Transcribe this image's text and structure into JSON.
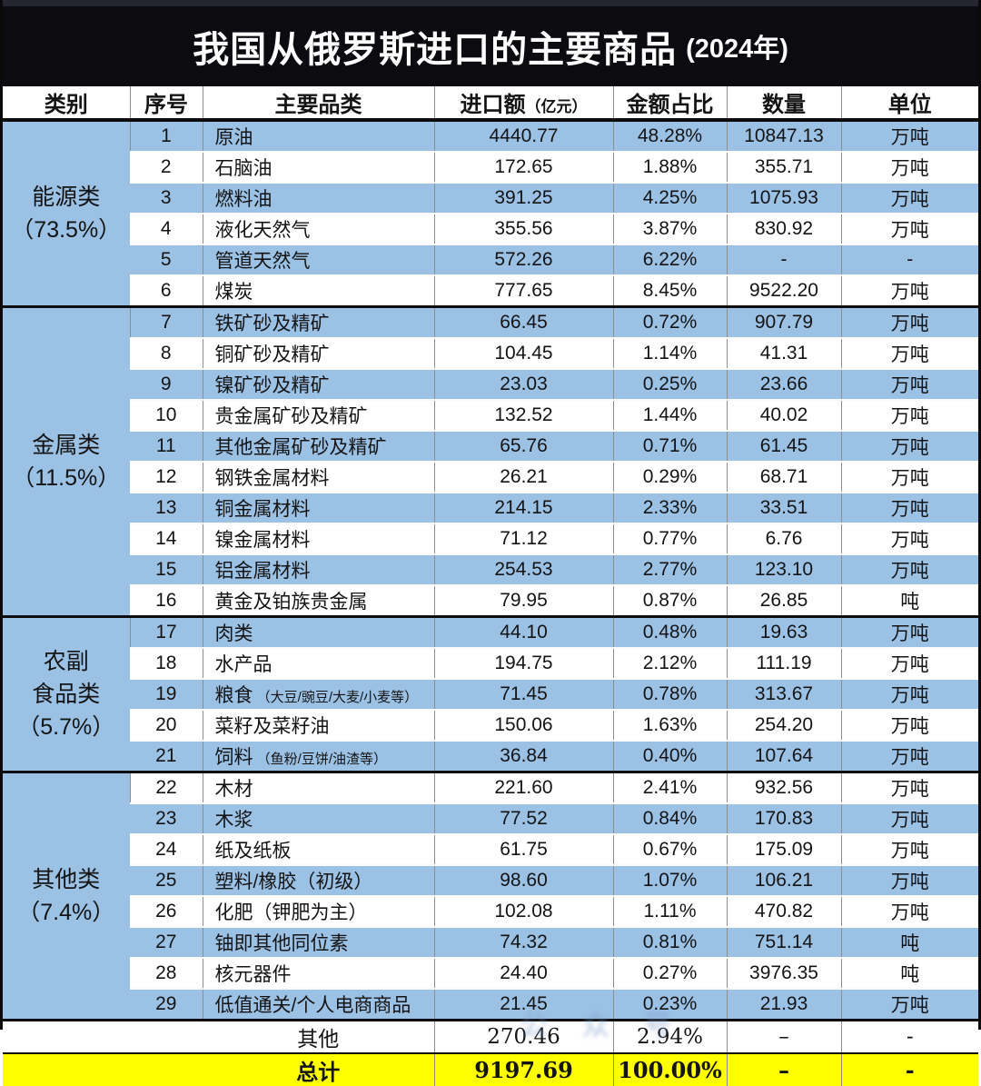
{
  "title": {
    "main": "我国从俄罗斯进口的主要商品",
    "year": "(2024年)"
  },
  "header": {
    "category": "类别",
    "no": "序号",
    "name": "主要品类",
    "value": "进口额",
    "value_sub": "（亿元）",
    "share": "金额占比",
    "qty": "数量",
    "unit": "单位"
  },
  "categories": [
    {
      "label_lines": [
        "能源类",
        "（73.5%）"
      ],
      "bg": "white",
      "rows": [
        {
          "no": "1",
          "name": "原油",
          "note": "",
          "value": "4440.77",
          "share": "48.28%",
          "qty": "10847.13",
          "unit": "万吨"
        },
        {
          "no": "2",
          "name": "石脑油",
          "note": "",
          "value": "172.65",
          "share": "1.88%",
          "qty": "355.71",
          "unit": "万吨"
        },
        {
          "no": "3",
          "name": "燃料油",
          "note": "",
          "value": "391.25",
          "share": "4.25%",
          "qty": "1075.93",
          "unit": "万吨"
        },
        {
          "no": "4",
          "name": "液化天然气",
          "note": "",
          "value": "355.56",
          "share": "3.87%",
          "qty": "830.92",
          "unit": "万吨"
        },
        {
          "no": "5",
          "name": "管道天然气",
          "note": "",
          "value": "572.26",
          "share": "6.22%",
          "qty": "-",
          "unit": "-"
        },
        {
          "no": "6",
          "name": "煤炭",
          "note": "",
          "value": "777.65",
          "share": "8.45%",
          "qty": "9522.20",
          "unit": "万吨"
        }
      ]
    },
    {
      "label_lines": [
        "金属类",
        "（11.5%）"
      ],
      "bg": "blue",
      "rows": [
        {
          "no": "7",
          "name": "铁矿砂及精矿",
          "note": "",
          "value": "66.45",
          "share": "0.72%",
          "qty": "907.79",
          "unit": "万吨"
        },
        {
          "no": "8",
          "name": "铜矿砂及精矿",
          "note": "",
          "value": "104.45",
          "share": "1.14%",
          "qty": "41.31",
          "unit": "万吨"
        },
        {
          "no": "9",
          "name": "镍矿砂及精矿",
          "note": "",
          "value": "23.03",
          "share": "0.25%",
          "qty": "23.66",
          "unit": "万吨"
        },
        {
          "no": "10",
          "name": "贵金属矿砂及精矿",
          "note": "",
          "value": "132.52",
          "share": "1.44%",
          "qty": "40.02",
          "unit": "万吨"
        },
        {
          "no": "11",
          "name": "其他金属矿砂及精矿",
          "note": "",
          "value": "65.76",
          "share": "0.71%",
          "qty": "61.45",
          "unit": "万吨"
        },
        {
          "no": "12",
          "name": "钢铁金属材料",
          "note": "",
          "value": "26.21",
          "share": "0.29%",
          "qty": "68.71",
          "unit": "万吨"
        },
        {
          "no": "13",
          "name": "铜金属材料",
          "note": "",
          "value": "214.15",
          "share": "2.33%",
          "qty": "33.51",
          "unit": "万吨"
        },
        {
          "no": "14",
          "name": "镍金属材料",
          "note": "",
          "value": "71.12",
          "share": "0.77%",
          "qty": "6.76",
          "unit": "万吨"
        },
        {
          "no": "15",
          "name": "铝金属材料",
          "note": "",
          "value": "254.53",
          "share": "2.77%",
          "qty": "123.10",
          "unit": "万吨"
        },
        {
          "no": "16",
          "name": "黄金及铂族贵金属",
          "note": "",
          "value": "79.95",
          "share": "0.87%",
          "qty": "26.85",
          "unit": "吨"
        }
      ]
    },
    {
      "label_lines": [
        "农副",
        "食品类",
        "（5.7%）"
      ],
      "bg": "white",
      "rows": [
        {
          "no": "17",
          "name": "肉类",
          "note": "",
          "value": "44.10",
          "share": "0.48%",
          "qty": "19.63",
          "unit": "万吨"
        },
        {
          "no": "18",
          "name": "水产品",
          "note": "",
          "value": "194.75",
          "share": "2.12%",
          "qty": "111.19",
          "unit": "万吨"
        },
        {
          "no": "19",
          "name": "粮食",
          "note": "（大豆/豌豆/大麦/小麦等）",
          "value": "71.45",
          "share": "0.78%",
          "qty": "313.67",
          "unit": "万吨"
        },
        {
          "no": "20",
          "name": "菜籽及菜籽油",
          "note": "",
          "value": "150.06",
          "share": "1.63%",
          "qty": "254.20",
          "unit": "万吨"
        },
        {
          "no": "21",
          "name": "饲料",
          "note": "（鱼粉/豆饼/油渣等）",
          "value": "36.84",
          "share": "0.40%",
          "qty": "107.64",
          "unit": "万吨"
        }
      ]
    },
    {
      "label_lines": [
        "其他类",
        "（7.4%）"
      ],
      "bg": "blue",
      "rows": [
        {
          "no": "22",
          "name": "木材",
          "note": "",
          "value": "221.60",
          "share": "2.41%",
          "qty": "932.56",
          "unit": "万吨"
        },
        {
          "no": "23",
          "name": "木浆",
          "note": "",
          "value": "77.52",
          "share": "0.84%",
          "qty": "170.83",
          "unit": "万吨"
        },
        {
          "no": "24",
          "name": "纸及纸板",
          "note": "",
          "value": "61.75",
          "share": "0.67%",
          "qty": "175.09",
          "unit": "万吨"
        },
        {
          "no": "25",
          "name": "塑料/橡胶（初级）",
          "note": "",
          "value": "98.60",
          "share": "1.07%",
          "qty": "106.21",
          "unit": "万吨"
        },
        {
          "no": "26",
          "name": "化肥（钾肥为主）",
          "note": "",
          "value": "102.08",
          "share": "1.11%",
          "qty": "470.82",
          "unit": "万吨"
        },
        {
          "no": "27",
          "name": "铀即其他同位素",
          "note": "",
          "value": "74.32",
          "share": "0.81%",
          "qty": "751.14",
          "unit": "吨"
        },
        {
          "no": "28",
          "name": "核元器件",
          "note": "",
          "value": "24.40",
          "share": "0.27%",
          "qty": "3976.35",
          "unit": "吨"
        },
        {
          "no": "29",
          "name": "低值通关/个人电商商品",
          "note": "",
          "value": "21.45",
          "share": "0.23%",
          "qty": "21.93",
          "unit": "万吨"
        }
      ]
    }
  ],
  "footer": {
    "other": {
      "name": "其他",
      "value": "270.46",
      "share": "2.94%",
      "qty": "–",
      "unit": "-"
    },
    "total": {
      "name": "总计",
      "value": "9197.69",
      "share": "100.00%",
      "qty": "–",
      "unit": "-"
    }
  },
  "watermark": "公众号",
  "colors": {
    "row_blue": "#9BC1E5",
    "total_yellow": "#FFFF00",
    "title_bg": "#0B0B10",
    "grid_line": "#8d8d8d"
  },
  "chart_data": {
    "type": "table",
    "title": "我国从俄罗斯进口的主要商品 (2024年)",
    "columns": [
      "类别",
      "序号",
      "主要品类",
      "进口额（亿元）",
      "金额占比",
      "数量",
      "单位"
    ],
    "category_shares": {
      "能源类": "73.5%",
      "金属类": "11.5%",
      "农副食品类": "5.7%",
      "其他类": "7.4%"
    },
    "rows": [
      [
        "能源类（73.5%）",
        1,
        "原油",
        4440.77,
        "48.28%",
        10847.13,
        "万吨"
      ],
      [
        "能源类（73.5%）",
        2,
        "石脑油",
        172.65,
        "1.88%",
        355.71,
        "万吨"
      ],
      [
        "能源类（73.5%）",
        3,
        "燃料油",
        391.25,
        "4.25%",
        1075.93,
        "万吨"
      ],
      [
        "能源类（73.5%）",
        4,
        "液化天然气",
        355.56,
        "3.87%",
        830.92,
        "万吨"
      ],
      [
        "能源类（73.5%）",
        5,
        "管道天然气",
        572.26,
        "6.22%",
        null,
        null
      ],
      [
        "能源类（73.5%）",
        6,
        "煤炭",
        777.65,
        "8.45%",
        9522.2,
        "万吨"
      ],
      [
        "金属类（11.5%）",
        7,
        "铁矿砂及精矿",
        66.45,
        "0.72%",
        907.79,
        "万吨"
      ],
      [
        "金属类（11.5%）",
        8,
        "铜矿砂及精矿",
        104.45,
        "1.14%",
        41.31,
        "万吨"
      ],
      [
        "金属类（11.5%）",
        9,
        "镍矿砂及精矿",
        23.03,
        "0.25%",
        23.66,
        "万吨"
      ],
      [
        "金属类（11.5%）",
        10,
        "贵金属矿砂及精矿",
        132.52,
        "1.44%",
        40.02,
        "万吨"
      ],
      [
        "金属类（11.5%）",
        11,
        "其他金属矿砂及精矿",
        65.76,
        "0.71%",
        61.45,
        "万吨"
      ],
      [
        "金属类（11.5%）",
        12,
        "钢铁金属材料",
        26.21,
        "0.29%",
        68.71,
        "万吨"
      ],
      [
        "金属类（11.5%）",
        13,
        "铜金属材料",
        214.15,
        "2.33%",
        33.51,
        "万吨"
      ],
      [
        "金属类（11.5%）",
        14,
        "镍金属材料",
        71.12,
        "0.77%",
        6.76,
        "万吨"
      ],
      [
        "金属类（11.5%）",
        15,
        "铝金属材料",
        254.53,
        "2.77%",
        123.1,
        "万吨"
      ],
      [
        "金属类（11.5%）",
        16,
        "黄金及铂族贵金属",
        79.95,
        "0.87%",
        26.85,
        "吨"
      ],
      [
        "农副食品类（5.7%）",
        17,
        "肉类",
        44.1,
        "0.48%",
        19.63,
        "万吨"
      ],
      [
        "农副食品类（5.7%）",
        18,
        "水产品",
        194.75,
        "2.12%",
        111.19,
        "万吨"
      ],
      [
        "农副食品类（5.7%）",
        19,
        "粮食（大豆/豌豆/大麦/小麦等）",
        71.45,
        "0.78%",
        313.67,
        "万吨"
      ],
      [
        "农副食品类（5.7%）",
        20,
        "菜籽及菜籽油",
        150.06,
        "1.63%",
        254.2,
        "万吨"
      ],
      [
        "农副食品类（5.7%）",
        21,
        "饲料（鱼粉/豆饼/油渣等）",
        36.84,
        "0.40%",
        107.64,
        "万吨"
      ],
      [
        "其他类（7.4%）",
        22,
        "木材",
        221.6,
        "2.41%",
        932.56,
        "万吨"
      ],
      [
        "其他类（7.4%）",
        23,
        "木浆",
        77.52,
        "0.84%",
        170.83,
        "万吨"
      ],
      [
        "其他类（7.4%）",
        24,
        "纸及纸板",
        61.75,
        "0.67%",
        175.09,
        "万吨"
      ],
      [
        "其他类（7.4%）",
        25,
        "塑料/橡胶（初级）",
        98.6,
        "1.07%",
        106.21,
        "万吨"
      ],
      [
        "其他类（7.4%）",
        26,
        "化肥（钾肥为主）",
        102.08,
        "1.11%",
        470.82,
        "万吨"
      ],
      [
        "其他类（7.4%）",
        27,
        "铀即其他同位素",
        74.32,
        "0.81%",
        751.14,
        "吨"
      ],
      [
        "其他类（7.4%）",
        28,
        "核元器件",
        24.4,
        "0.27%",
        3976.35,
        "吨"
      ],
      [
        "其他类（7.4%）",
        29,
        "低值通关/个人电商商品",
        21.45,
        "0.23%",
        21.93,
        "万吨"
      ],
      [
        "",
        null,
        "其他",
        270.46,
        "2.94%",
        null,
        null
      ],
      [
        "",
        null,
        "总计",
        9197.69,
        "100.00%",
        null,
        null
      ]
    ]
  }
}
